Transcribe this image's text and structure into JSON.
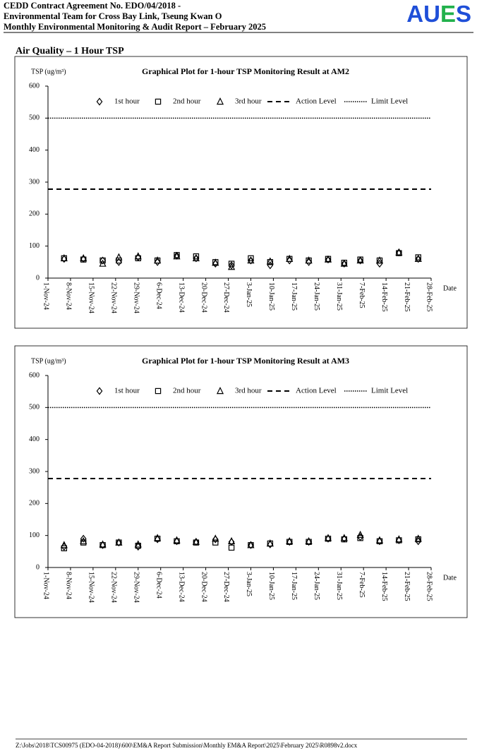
{
  "header": {
    "line1": "CEDD Contract Agreement No. EDO/04/2018 -",
    "line2": "Environmental Team for Cross Bay Link, Tseung Kwan O",
    "line3": "Monthly Environmental Monitoring & Audit Report – February 2025",
    "logo": "AUES"
  },
  "section_title": "Air Quality – 1 Hour TSP",
  "chart_data": [
    {
      "type": "scatter",
      "title": "Graphical Plot for 1-hour TSP Monitoring Result at AM2",
      "ylabel": "TSP (ug/m³)",
      "xlabel": "Date",
      "x": [
        "2024-11-06",
        "2024-11-12",
        "2024-11-18",
        "2024-11-23",
        "2024-11-29",
        "2024-12-05",
        "2024-12-11",
        "2024-12-17",
        "2024-12-23",
        "2024-12-28",
        "2025-01-03",
        "2025-01-09",
        "2025-01-15",
        "2025-01-21",
        "2025-01-27",
        "2025-02-01",
        "2025-02-06",
        "2025-02-12",
        "2025-02-18",
        "2025-02-24"
      ],
      "series": [
        {
          "name": "1st hour",
          "marker": "diamond",
          "color": "#000000",
          "values": [
            60,
            60,
            55,
            50,
            65,
            50,
            70,
            62,
            45,
            40,
            55,
            40,
            55,
            50,
            58,
            45,
            55,
            45,
            80,
            60
          ]
        },
        {
          "name": "2nd hour",
          "marker": "square",
          "color": "#000000",
          "values": [
            62,
            58,
            55,
            55,
            62,
            55,
            72,
            68,
            50,
            45,
            62,
            50,
            60,
            55,
            60,
            48,
            58,
            55,
            78,
            65
          ]
        },
        {
          "name": "3rd hour",
          "marker": "triangle",
          "color": "#000000",
          "values": [
            62,
            62,
            45,
            65,
            68,
            55,
            68,
            62,
            48,
            35,
            55,
            52,
            60,
            55,
            58,
            45,
            55,
            55,
            80,
            60
          ]
        }
      ],
      "reference_lines": [
        {
          "name": "Action Level",
          "value": 278,
          "style": "dashed"
        },
        {
          "name": "Limit Level",
          "value": 500,
          "style": "dotted"
        }
      ],
      "xlim": [
        "2024-11-01",
        "2025-02-28"
      ],
      "xticks": [
        {
          "value": "2024-11-01",
          "label": "1-Nov-24"
        },
        {
          "value": "2024-11-08",
          "label": "8-Nov-24"
        },
        {
          "value": "2024-11-15",
          "label": "15-Nov-24"
        },
        {
          "value": "2024-11-22",
          "label": "22-Nov-24"
        },
        {
          "value": "2024-11-29",
          "label": "29-Nov-24"
        },
        {
          "value": "2024-12-06",
          "label": "6-Dec-24"
        },
        {
          "value": "2024-12-13",
          "label": "13-Dec-24"
        },
        {
          "value": "2024-12-20",
          "label": "20-Dec-24"
        },
        {
          "value": "2024-12-27",
          "label": "27-Dec-24"
        },
        {
          "value": "2025-01-03",
          "label": "3-Jan-25"
        },
        {
          "value": "2025-01-10",
          "label": "10-Jan-25"
        },
        {
          "value": "2025-01-17",
          "label": "17-Jan-25"
        },
        {
          "value": "2025-01-24",
          "label": "24-Jan-25"
        },
        {
          "value": "2025-01-31",
          "label": "31-Jan-25"
        },
        {
          "value": "2025-02-07",
          "label": "7-Feb-25"
        },
        {
          "value": "2025-02-14",
          "label": "14-Feb-25"
        },
        {
          "value": "2025-02-21",
          "label": "21-Feb-25"
        },
        {
          "value": "2025-02-28",
          "label": "28-Feb-25"
        }
      ],
      "ylim": [
        0,
        600
      ],
      "yticks": [
        0,
        100,
        200,
        300,
        400,
        500,
        600
      ],
      "grid": false
    },
    {
      "type": "scatter",
      "title": "Graphical Plot for 1-hour TSP Monitoring Result at AM3",
      "ylabel": "TSP (ug/m³)",
      "xlabel": "Date",
      "x": [
        "2024-11-06",
        "2024-11-12",
        "2024-11-18",
        "2024-11-23",
        "2024-11-29",
        "2024-12-05",
        "2024-12-11",
        "2024-12-17",
        "2024-12-23",
        "2024-12-28",
        "2025-01-03",
        "2025-01-09",
        "2025-01-15",
        "2025-01-21",
        "2025-01-27",
        "2025-02-01",
        "2025-02-06",
        "2025-02-12",
        "2025-02-18",
        "2025-02-24"
      ],
      "series": [
        {
          "name": "1st hour",
          "marker": "diamond",
          "color": "#000000",
          "values": [
            65,
            90,
            70,
            78,
            65,
            88,
            82,
            80,
            88,
            80,
            70,
            72,
            80,
            80,
            90,
            90,
            95,
            82,
            85,
            82
          ]
        },
        {
          "name": "2nd hour",
          "marker": "square",
          "color": "#000000",
          "values": [
            60,
            78,
            70,
            78,
            68,
            90,
            82,
            78,
            78,
            62,
            70,
            75,
            80,
            80,
            90,
            88,
            92,
            82,
            85,
            88
          ]
        },
        {
          "name": "3rd hour",
          "marker": "triangle",
          "color": "#000000",
          "values": [
            70,
            82,
            72,
            78,
            72,
            92,
            85,
            80,
            90,
            82,
            70,
            75,
            82,
            82,
            92,
            92,
            102,
            85,
            88,
            90
          ]
        }
      ],
      "reference_lines": [
        {
          "name": "Action Level",
          "value": 278,
          "style": "dashed"
        },
        {
          "name": "Limit Level",
          "value": 500,
          "style": "dotted"
        }
      ],
      "xlim": [
        "2024-11-01",
        "2025-02-28"
      ],
      "xticks": [
        {
          "value": "2024-11-01",
          "label": "1-Nov-24"
        },
        {
          "value": "2024-11-08",
          "label": "8-Nov-24"
        },
        {
          "value": "2024-11-15",
          "label": "15-Nov-24"
        },
        {
          "value": "2024-11-22",
          "label": "22-Nov-24"
        },
        {
          "value": "2024-11-29",
          "label": "29-Nov-24"
        },
        {
          "value": "2024-12-06",
          "label": "6-Dec-24"
        },
        {
          "value": "2024-12-13",
          "label": "13-Dec-24"
        },
        {
          "value": "2024-12-20",
          "label": "20-Dec-24"
        },
        {
          "value": "2024-12-27",
          "label": "27-Dec-24"
        },
        {
          "value": "2025-01-03",
          "label": "3-Jan-25"
        },
        {
          "value": "2025-01-10",
          "label": "10-Jan-25"
        },
        {
          "value": "2025-01-17",
          "label": "17-Jan-25"
        },
        {
          "value": "2025-01-24",
          "label": "24-Jan-25"
        },
        {
          "value": "2025-01-31",
          "label": "31-Jan-25"
        },
        {
          "value": "2025-02-07",
          "label": "7-Feb-25"
        },
        {
          "value": "2025-02-14",
          "label": "14-Feb-25"
        },
        {
          "value": "2025-02-21",
          "label": "21-Feb-25"
        },
        {
          "value": "2025-02-28",
          "label": "28-Feb-25"
        }
      ],
      "ylim": [
        0,
        600
      ],
      "yticks": [
        0,
        100,
        200,
        300,
        400,
        500,
        600
      ],
      "grid": false
    }
  ],
  "footer": "Z:\\Jobs\\2018\\TCS00975 (EDO-04-2018)\\600\\EM&A Report Submission\\Monthly EM&A Report\\2025\\February 2025\\R0898v2.docx"
}
